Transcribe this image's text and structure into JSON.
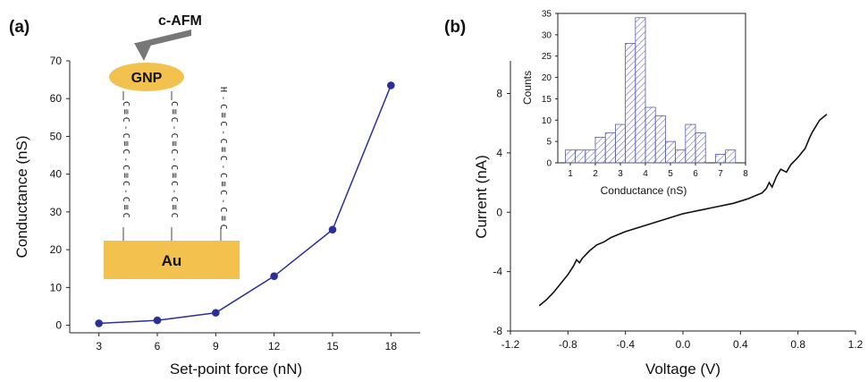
{
  "chart_data": [
    {
      "panel": "(a)",
      "type": "line",
      "xlabel": "Set-point force (nN)",
      "ylabel": "Conductance (nS)",
      "xticks": [
        3,
        6,
        9,
        12,
        15,
        18
      ],
      "yticks": [
        0,
        10,
        20,
        30,
        40,
        50,
        60,
        70
      ],
      "xlim": [
        1.5,
        19.5
      ],
      "ylim": [
        -2,
        70
      ],
      "series": [
        {
          "x": [
            3,
            6,
            9,
            12,
            15,
            18
          ],
          "y": [
            0.5,
            1.3,
            3.3,
            13,
            25.3,
            63.5
          ],
          "color": "#2b2f9a"
        }
      ],
      "schematic": {
        "probe_label": "c-AFM",
        "particle_label": "GNP",
        "substrate_label": "Au",
        "terminal_atom": "H",
        "chain_atom": "C",
        "triple_bond": "≡",
        "single_bond": "-",
        "particle_color": "#f2c14e",
        "substrate_color": "#f2c14e"
      }
    },
    {
      "panel": "(b)",
      "type": "line",
      "xlabel": "Voltage (V)",
      "ylabel": "Current (nA)",
      "xticks": [
        "-1.2",
        "-0.8",
        "-0.4",
        "0.0",
        "0.4",
        "0.8",
        "1.2"
      ],
      "yticks": [
        -8,
        -4,
        0,
        4,
        8
      ],
      "xlim": [
        -1.2,
        1.2
      ],
      "ylim": [
        -8,
        10.2
      ],
      "series": [
        {
          "x": [
            -1.0,
            -0.95,
            -0.9,
            -0.85,
            -0.8,
            -0.76,
            -0.74,
            -0.72,
            -0.7,
            -0.65,
            -0.6,
            -0.55,
            -0.5,
            -0.45,
            -0.4,
            -0.35,
            -0.3,
            -0.25,
            -0.2,
            -0.15,
            -0.1,
            -0.05,
            0.0,
            0.05,
            0.1,
            0.15,
            0.2,
            0.25,
            0.3,
            0.35,
            0.4,
            0.45,
            0.5,
            0.55,
            0.58,
            0.6,
            0.62,
            0.65,
            0.68,
            0.72,
            0.75,
            0.8,
            0.85,
            0.88,
            0.9,
            0.95,
            1.0
          ],
          "y": [
            -6.3,
            -5.9,
            -5.4,
            -4.8,
            -4.2,
            -3.6,
            -3.2,
            -3.4,
            -3.1,
            -2.6,
            -2.2,
            -2.0,
            -1.7,
            -1.5,
            -1.3,
            -1.15,
            -1.0,
            -0.85,
            -0.7,
            -0.55,
            -0.4,
            -0.25,
            -0.1,
            0.0,
            0.1,
            0.2,
            0.3,
            0.4,
            0.5,
            0.6,
            0.75,
            0.9,
            1.1,
            1.3,
            1.6,
            2.0,
            1.7,
            2.4,
            2.9,
            2.7,
            3.2,
            3.7,
            4.3,
            5.0,
            5.4,
            6.2,
            6.6
          ],
          "color": "#111111"
        }
      ],
      "inset": {
        "type": "bar",
        "xlabel": "Conductance (nS)",
        "ylabel": "Counts",
        "xticks": [
          1,
          2,
          3,
          4,
          5,
          6,
          7,
          8
        ],
        "yticks": [
          0,
          5,
          10,
          15,
          20,
          25,
          30,
          35
        ],
        "xlim": [
          0.5,
          8
        ],
        "ylim": [
          0,
          35
        ],
        "bin_width": 0.4,
        "bin_starts": [
          0.8,
          1.2,
          1.6,
          2.0,
          2.4,
          2.8,
          3.2,
          3.6,
          4.0,
          4.4,
          4.8,
          5.2,
          5.6,
          6.0,
          6.4,
          6.8,
          7.2
        ],
        "counts": [
          3,
          3,
          3,
          6,
          7,
          9,
          28,
          34,
          13,
          11,
          5,
          3,
          9,
          7,
          0,
          2,
          3
        ],
        "hatch_color": "#5a5ab0"
      }
    }
  ]
}
